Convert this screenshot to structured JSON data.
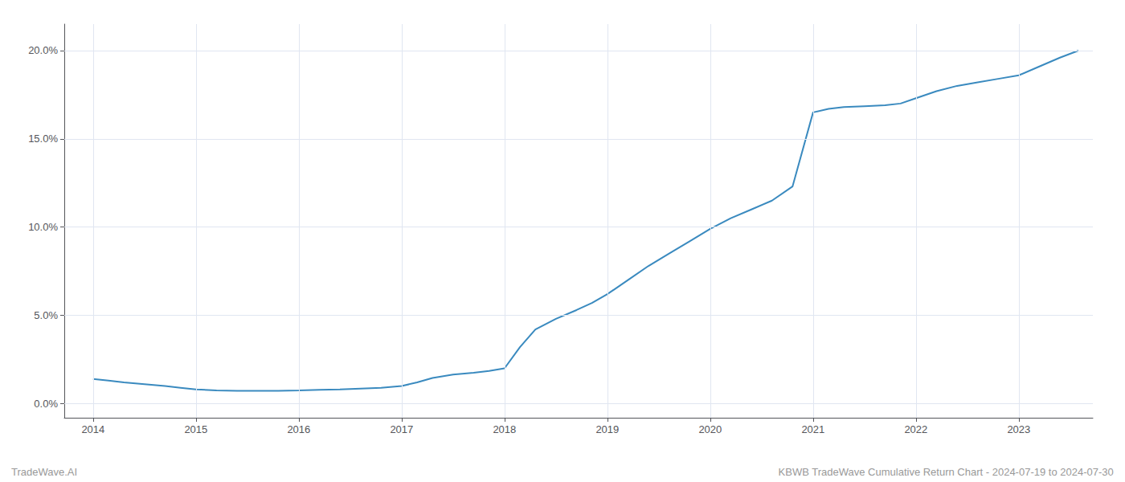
{
  "chart_data": {
    "type": "line",
    "x": [
      2014.0,
      2014.15,
      2014.3,
      2014.5,
      2014.7,
      2014.85,
      2015.0,
      2015.2,
      2015.4,
      2015.6,
      2015.8,
      2016.0,
      2016.2,
      2016.4,
      2016.6,
      2016.8,
      2017.0,
      2017.15,
      2017.3,
      2017.5,
      2017.7,
      2017.85,
      2018.0,
      2018.15,
      2018.3,
      2018.5,
      2018.7,
      2018.85,
      2019.0,
      2019.2,
      2019.4,
      2019.6,
      2019.8,
      2020.0,
      2020.2,
      2020.4,
      2020.6,
      2020.8,
      2021.0,
      2021.15,
      2021.3,
      2021.5,
      2021.7,
      2021.85,
      2022.0,
      2022.2,
      2022.4,
      2022.6,
      2022.8,
      2023.0,
      2023.2,
      2023.4,
      2023.58
    ],
    "values": [
      1.4,
      1.3,
      1.2,
      1.1,
      1.0,
      0.9,
      0.8,
      0.75,
      0.72,
      0.72,
      0.73,
      0.75,
      0.78,
      0.8,
      0.85,
      0.9,
      1.0,
      1.2,
      1.45,
      1.65,
      1.75,
      1.85,
      2.0,
      3.2,
      4.2,
      4.8,
      5.3,
      5.7,
      6.2,
      7.0,
      7.8,
      8.5,
      9.2,
      9.9,
      10.5,
      11.0,
      11.5,
      12.3,
      16.5,
      16.7,
      16.8,
      16.85,
      16.9,
      17.0,
      17.3,
      17.7,
      18.0,
      18.2,
      18.4,
      18.6,
      19.1,
      19.6,
      20.0
    ],
    "color": "#3a8abf",
    "xlim": [
      2013.72,
      2023.72
    ],
    "xticks": [
      2014,
      2015,
      2016,
      2017,
      2018,
      2019,
      2020,
      2021,
      2022,
      2023
    ],
    "ylim": [
      -0.8,
      21.5
    ],
    "yticks": [
      {
        "value": 0.0,
        "label": "0.0%"
      },
      {
        "value": 5.0,
        "label": "5.0%"
      },
      {
        "value": 10.0,
        "label": "10.0%"
      },
      {
        "value": 15.0,
        "label": "15.0%"
      },
      {
        "value": 20.0,
        "label": "20.0%"
      }
    ],
    "grid": true,
    "annotations": [
      "TradeWave.AI",
      "KBWB TradeWave Cumulative Return Chart - 2024-07-19 to 2024-07-30"
    ]
  }
}
